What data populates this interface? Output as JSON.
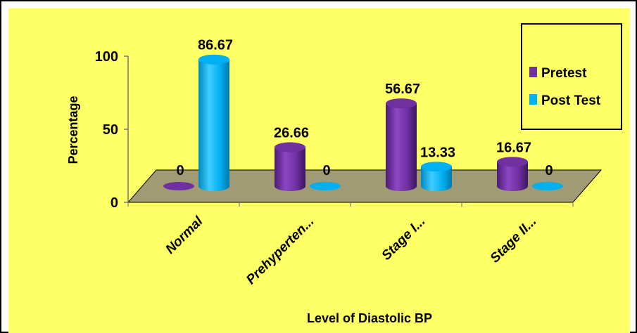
{
  "chart_data": {
    "type": "bar",
    "title": "",
    "xlabel": "Level of Diastolic BP",
    "ylabel": "Percentage",
    "ylim": [
      0,
      100
    ],
    "yticks": [
      0,
      50,
      100
    ],
    "categories": [
      "Normal",
      "Prehyperten...",
      "Stage I...",
      "Stage II..."
    ],
    "series": [
      {
        "name": "Pretest",
        "values": [
          0,
          26.66,
          56.67,
          16.67
        ],
        "labels": [
          "0",
          "26.66",
          "56.67",
          "16.67"
        ],
        "color": "#7030A0"
      },
      {
        "name": "Post Test",
        "values": [
          86.67,
          0,
          13.33,
          0
        ],
        "labels": [
          "86.67",
          "0",
          "13.33",
          "0"
        ],
        "color": "#00B0F0"
      }
    ],
    "legend_position": "top-right",
    "background_color": "#FFFF66",
    "floor_color": "#A09A75",
    "grid": false,
    "style": "3d-cylinder"
  }
}
